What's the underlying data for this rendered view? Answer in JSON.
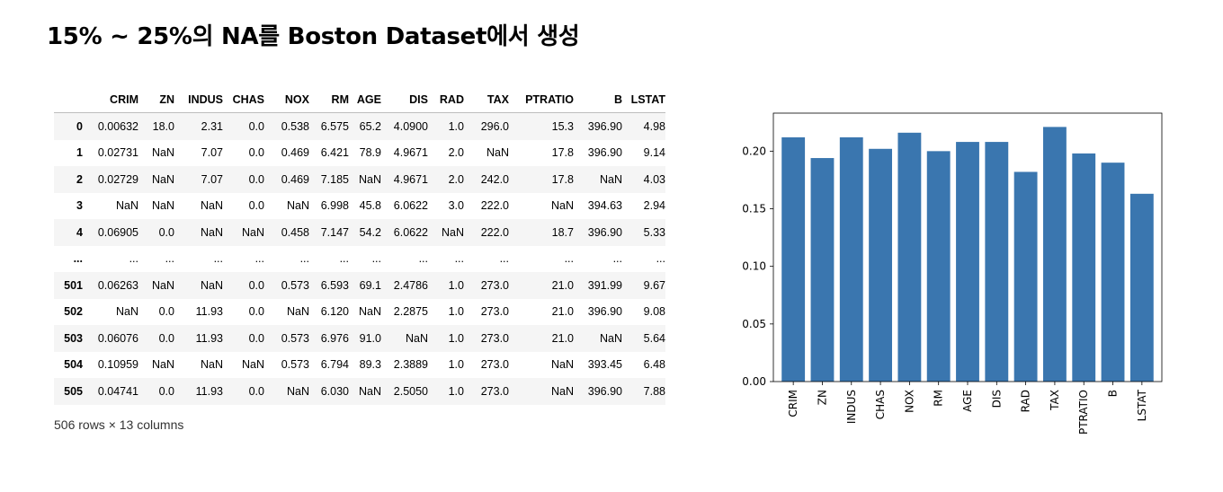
{
  "title": "15% ~ 25%의 NA를 Boston Dataset에서 생성",
  "table": {
    "columns": [
      "",
      "CRIM",
      "ZN",
      "INDUS",
      "CHAS",
      "NOX",
      "RM",
      "AGE",
      "DIS",
      "RAD",
      "TAX",
      "PTRATIO",
      "B",
      "LSTAT"
    ],
    "rows": [
      [
        "0",
        "0.00632",
        "18.0",
        "2.31",
        "0.0",
        "0.538",
        "6.575",
        "65.2",
        "4.0900",
        "1.0",
        "296.0",
        "15.3",
        "396.90",
        "4.98"
      ],
      [
        "1",
        "0.02731",
        "NaN",
        "7.07",
        "0.0",
        "0.469",
        "6.421",
        "78.9",
        "4.9671",
        "2.0",
        "NaN",
        "17.8",
        "396.90",
        "9.14"
      ],
      [
        "2",
        "0.02729",
        "NaN",
        "7.07",
        "0.0",
        "0.469",
        "7.185",
        "NaN",
        "4.9671",
        "2.0",
        "242.0",
        "17.8",
        "NaN",
        "4.03"
      ],
      [
        "3",
        "NaN",
        "NaN",
        "NaN",
        "0.0",
        "NaN",
        "6.998",
        "45.8",
        "6.0622",
        "3.0",
        "222.0",
        "NaN",
        "394.63",
        "2.94"
      ],
      [
        "4",
        "0.06905",
        "0.0",
        "NaN",
        "NaN",
        "0.458",
        "7.147",
        "54.2",
        "6.0622",
        "NaN",
        "222.0",
        "18.7",
        "396.90",
        "5.33"
      ],
      [
        "...",
        "...",
        "...",
        "...",
        "...",
        "...",
        "...",
        "...",
        "...",
        "...",
        "...",
        "...",
        "...",
        "..."
      ],
      [
        "501",
        "0.06263",
        "NaN",
        "NaN",
        "0.0",
        "0.573",
        "6.593",
        "69.1",
        "2.4786",
        "1.0",
        "273.0",
        "21.0",
        "391.99",
        "9.67"
      ],
      [
        "502",
        "NaN",
        "0.0",
        "11.93",
        "0.0",
        "NaN",
        "6.120",
        "NaN",
        "2.2875",
        "1.0",
        "273.0",
        "21.0",
        "396.90",
        "9.08"
      ],
      [
        "503",
        "0.06076",
        "0.0",
        "11.93",
        "0.0",
        "0.573",
        "6.976",
        "91.0",
        "NaN",
        "1.0",
        "273.0",
        "21.0",
        "NaN",
        "5.64"
      ],
      [
        "504",
        "0.10959",
        "NaN",
        "NaN",
        "NaN",
        "0.573",
        "6.794",
        "89.3",
        "2.3889",
        "1.0",
        "273.0",
        "NaN",
        "393.45",
        "6.48"
      ],
      [
        "505",
        "0.04741",
        "0.0",
        "11.93",
        "0.0",
        "NaN",
        "6.030",
        "NaN",
        "2.5050",
        "1.0",
        "273.0",
        "NaN",
        "396.90",
        "7.88"
      ]
    ],
    "summary": "506 rows × 13 columns"
  },
  "chart_data": {
    "type": "bar",
    "categories": [
      "CRIM",
      "ZN",
      "INDUS",
      "CHAS",
      "NOX",
      "RM",
      "AGE",
      "DIS",
      "RAD",
      "TAX",
      "PTRATIO",
      "B",
      "LSTAT"
    ],
    "values": [
      0.212,
      0.194,
      0.212,
      0.202,
      0.216,
      0.2,
      0.208,
      0.208,
      0.182,
      0.221,
      0.198,
      0.19,
      0.163
    ],
    "yticks": [
      "0.00",
      "0.05",
      "0.10",
      "0.15",
      "0.20"
    ],
    "ylim": [
      0,
      0.233
    ],
    "bar_color": "#3a76af",
    "grid": false,
    "title": "",
    "xlabel": "",
    "ylabel": ""
  }
}
